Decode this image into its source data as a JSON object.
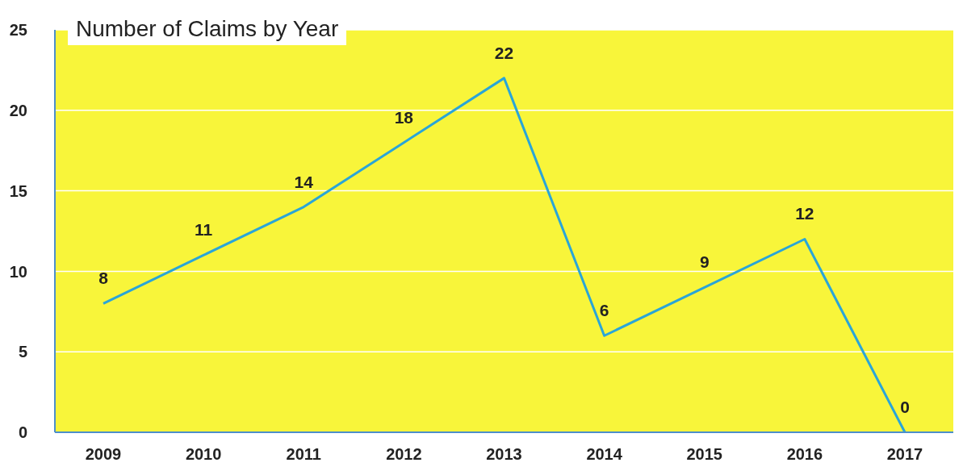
{
  "chart_data": {
    "type": "line",
    "title": "Number of Claims by Year",
    "categories": [
      "2009",
      "2010",
      "2011",
      "2012",
      "2013",
      "2014",
      "2015",
      "2016",
      "2017"
    ],
    "series": [
      {
        "color": "#2aa5d8",
        "values": [
          8,
          11,
          14,
          18,
          22,
          6,
          9,
          12,
          0
        ]
      }
    ],
    "ylim": [
      0,
      25
    ],
    "yticks": [
      0,
      5,
      10,
      15,
      20,
      25
    ],
    "grid": "y",
    "legend": false,
    "marker": "none",
    "line_style": "solid",
    "data_labels": true
  }
}
